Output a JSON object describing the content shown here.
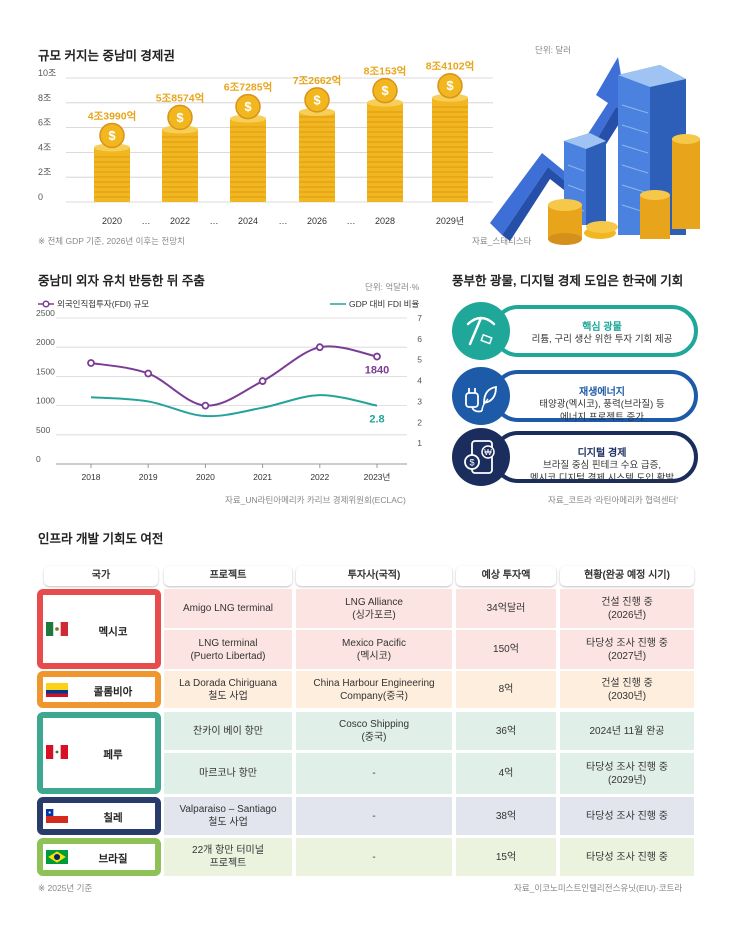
{
  "section1": {
    "title": "규모 커지는 중남미 경제권",
    "unit": "단위: 달러",
    "note": "※ 전체 GDP 기준, 2026년 이후는 전망치",
    "source": "자료_스태티스타",
    "y_ticks": [
      "10조",
      "8조",
      "6조",
      "4조",
      "2조",
      "0"
    ],
    "x_ticks": [
      "2020",
      "…",
      "2022",
      "…",
      "2024",
      "…",
      "2026",
      "…",
      "2028",
      "2029년"
    ],
    "value_labels": [
      "4조3990억",
      "5조8574억",
      "6조7285억",
      "7조2662억",
      "8조153억",
      "8조4102억"
    ]
  },
  "section2": {
    "title": "중남미 외자 유치 반등한 뒤 주춤",
    "unit": "단위: 억달러·%",
    "legend_fdi": "외국인직접투자(FDI) 규모",
    "legend_ratio": "GDP 대비 FDI 비율",
    "left_ticks": [
      "2500",
      "2000",
      "1500",
      "1000",
      "500",
      "0"
    ],
    "right_ticks": [
      "7",
      "6",
      "5",
      "4",
      "3",
      "2",
      "1"
    ],
    "x_ticks": [
      "2018",
      "2019",
      "2020",
      "2021",
      "2022",
      "2023년"
    ],
    "last_fdi": "1840",
    "last_ratio": "2.8",
    "source": "자료_UN라틴아메리카 카리브 경제위원회(ECLAC)"
  },
  "section3": {
    "title": "풍부한 광물, 디지털 경제 도입은 한국에 기회",
    "items": [
      {
        "title": "핵심 광물",
        "desc1": "리튬, 구리 생산 위한 투자 기회 제공",
        "desc2": "",
        "icon": "pickaxe-icon",
        "color": "#1fa89a"
      },
      {
        "title": "재생에너지",
        "desc1": "태양광(멕시코), 풍력(브라질) 등",
        "desc2": "에너지 프로젝트 증가",
        "icon": "plug-leaf-icon",
        "color": "#1d5aa8"
      },
      {
        "title": "디지털 경제",
        "desc1": "브라질 중심 핀테크 수요 급증,",
        "desc2": "멕시코 디지털 결제 시스템 도입 활발",
        "icon": "mobile-payment-icon",
        "color": "#1a2d5c"
      }
    ],
    "source": "자료_코트라 '라틴아메리카 협력센터'"
  },
  "section4": {
    "title": "인프라 개발 기회도 여전",
    "headers": [
      "국가",
      "프로젝트",
      "투자사(국적)",
      "예상 투자액",
      "현황(완공 예정 시기)"
    ],
    "countries": [
      {
        "name": "멕시코",
        "color": "#e84b4b",
        "flag": "mexico-flag-icon"
      },
      {
        "name": "콜롬비아",
        "color": "#f0962e",
        "flag": "colombia-flag-icon"
      },
      {
        "name": "페루",
        "color": "#3ea790",
        "flag": "peru-flag-icon"
      },
      {
        "name": "칠레",
        "color": "#283b6b",
        "flag": "chile-flag-icon"
      },
      {
        "name": "브라질",
        "color": "#8ec257",
        "flag": "brazil-flag-icon"
      }
    ],
    "rows": [
      {
        "project": [
          "Amigo LNG terminal",
          ""
        ],
        "investor": [
          "LNG Alliance",
          "(싱가포르)"
        ],
        "amount": "34억달러",
        "status": [
          "건설 진행 중",
          "(2026년)"
        ],
        "bg": "#fbe4e2"
      },
      {
        "project": [
          "LNG terminal",
          "(Puerto Libertad)"
        ],
        "investor": [
          "Mexico Pacific",
          "(멕시코)"
        ],
        "amount": "150억",
        "status": [
          "타당성 조사 진행 중",
          "(2027년)"
        ],
        "bg": "#fbe4e2"
      },
      {
        "project": [
          "La Dorada Chiriguana",
          "철도 사업"
        ],
        "investor": [
          "China Harbour Engineering",
          "Company(중국)"
        ],
        "amount": "8억",
        "status": [
          "건설 진행 중",
          "(2030년)"
        ],
        "bg": "#fdeede"
      },
      {
        "project": [
          "찬카이 베이 항만",
          ""
        ],
        "investor": [
          "Cosco Shipping",
          "(중국)"
        ],
        "amount": "36억",
        "status": [
          "2024년 11월 완공",
          ""
        ],
        "bg": "#e1efe9"
      },
      {
        "project": [
          "마르코나 항만",
          ""
        ],
        "investor": [
          "-",
          ""
        ],
        "amount": "4억",
        "status": [
          "타당성 조사 진행 중",
          "(2029년)"
        ],
        "bg": "#e1efe9"
      },
      {
        "project": [
          "Valparaiso – Santiago",
          "철도 사업"
        ],
        "investor": [
          "-",
          ""
        ],
        "amount": "38억",
        "status": [
          "타당성 조사 진행 중",
          ""
        ],
        "bg": "#e3e5ee"
      },
      {
        "project": [
          "22개 항만 터미널",
          "프로젝트"
        ],
        "investor": [
          "-",
          ""
        ],
        "amount": "15억",
        "status": [
          "타당성 조사 진행 중",
          ""
        ],
        "bg": "#ebf3df"
      }
    ],
    "note": "※ 2025년 기준",
    "source": "자료_이코노미스트인텔리전스유닛(EIU)·코트라"
  },
  "chart_data": [
    {
      "type": "bar",
      "title": "규모 커지는 중남미 경제권",
      "ylabel": "",
      "unit": "달러",
      "categories": [
        "2020",
        "2022",
        "2024",
        "2026",
        "2028",
        "2029년"
      ],
      "values": [
        43990,
        58574,
        67285,
        72662,
        80153,
        84102
      ],
      "value_unit": "억달러",
      "ylim": [
        0,
        100000
      ],
      "colors": {
        "coin": "#f2b61f",
        "coin_dark": "#d9921a"
      }
    },
    {
      "type": "line",
      "title": "중남미 외자 유치 반등한 뒤 주춤",
      "x": [
        "2018",
        "2019",
        "2020",
        "2021",
        "2022",
        "2023년"
      ],
      "series": [
        {
          "name": "외국인직접투자(FDI) 규모",
          "axis": "left",
          "values": [
            1730,
            1550,
            1000,
            1420,
            2000,
            1840
          ],
          "color": "#7a3d96"
        },
        {
          "name": "GDP 대비 FDI 비율",
          "axis": "right",
          "values": [
            3.2,
            3.0,
            2.3,
            2.7,
            3.3,
            2.8
          ],
          "color": "#24a39a"
        }
      ],
      "ylim_left": [
        0,
        2500
      ],
      "ylim_right": [
        0,
        7
      ],
      "grid": true
    }
  ]
}
